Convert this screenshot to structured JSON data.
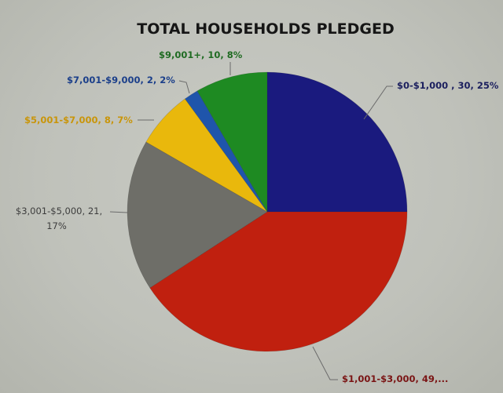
{
  "chart_data": {
    "type": "pie",
    "title": "TOTAL HOUSEHOLDS PLEDGED",
    "categories": [
      "$0-$1,000",
      "$1,001-$3,000",
      "$3,001-$5,000",
      "$5,001-$7,000",
      "$7,001-$9,000",
      "$9,001+"
    ],
    "values": [
      30,
      49,
      21,
      8,
      2,
      10
    ],
    "percentages": [
      25,
      41,
      17,
      7,
      2,
      8
    ],
    "colors": [
      "#1a1a7e",
      "#c0200f",
      "#6e6e68",
      "#e9b80c",
      "#1f55ab",
      "#1e8a22"
    ],
    "labels": [
      {
        "text": "$0-$1,000 , 30, 25%",
        "color": "#1b1f5e"
      },
      {
        "text": "$1,001-$3,000, 49,...",
        "color": "#7a1414"
      },
      {
        "text_line1": "$3,001-$5,000, 21,",
        "text_line2": "17%",
        "color": "#3d3d3d"
      },
      {
        "text": "$5,001-$7,000, 8, 7%",
        "color": "#c9950a"
      },
      {
        "text": "$7,001-$9,000, 2, 2%",
        "color": "#1b3f8a"
      },
      {
        "text": "$9,001+, 10, 8%",
        "color": "#1f6b22"
      }
    ],
    "start_angle": "12 o'clock",
    "direction": "clockwise",
    "legend": "none (data labels with leader lines)"
  }
}
